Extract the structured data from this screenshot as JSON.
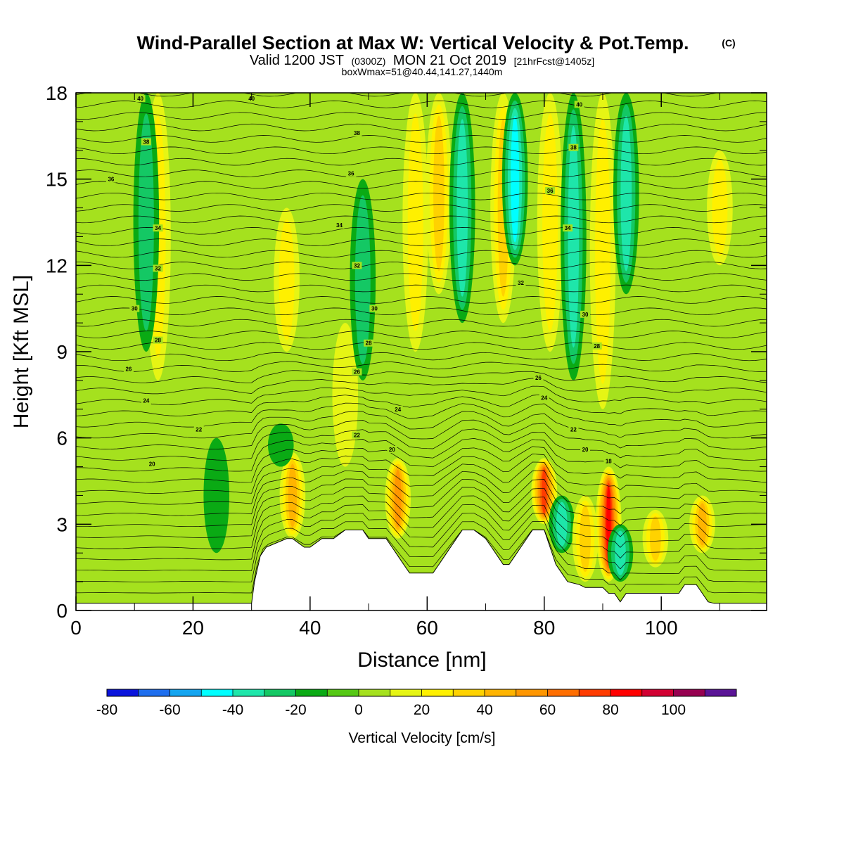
{
  "title": {
    "main": "Wind-Parallel Section at Max W: Vertical Velocity & Pot.Temp.",
    "main_mark": "(C)",
    "valid_prefix": "Valid 1200 JST",
    "valid_utc": "(0300Z)",
    "valid_date": "MON 21 Oct 2019",
    "forecast": "[21hrFcst@1405z]",
    "boxwmax": "boxWmax=51@40.44,141.27,1440m"
  },
  "colorbar": {
    "title": "Vertical Velocity [cm/s]",
    "levels": [
      -80,
      -70,
      -60,
      -50,
      -40,
      -30,
      -20,
      -10,
      0,
      10,
      20,
      30,
      40,
      50,
      60,
      70,
      80,
      90,
      100,
      110
    ],
    "labels": [
      "-80",
      "-60",
      "-40",
      "-20",
      "0",
      "20",
      "40",
      "60",
      "80",
      "100"
    ],
    "colors": [
      "#0a14dc",
      "#1e6eee",
      "#14a5f0",
      "#00ffff",
      "#1ee6aa",
      "#14c864",
      "#0aaa14",
      "#55c814",
      "#a5e11e",
      "#e6f514",
      "#fff000",
      "#ffd200",
      "#ffb400",
      "#ff9600",
      "#ff6e00",
      "#ff3c00",
      "#ff0000",
      "#d20032",
      "#960050",
      "#5a1496"
    ]
  },
  "chart_data": {
    "type": "heatmap",
    "title": "Wind-Parallel Section at Max W: Vertical Velocity & Pot.Temp.",
    "xlabel": "Distance [nm]",
    "ylabel": "Height [Kft MSL]",
    "xlim": [
      0,
      118
    ],
    "ylim": [
      0,
      18
    ],
    "x_ticks": [
      "0",
      "20",
      "40",
      "60",
      "80",
      "100"
    ],
    "y_ticks": [
      "0",
      "3",
      "6",
      "9",
      "12",
      "15",
      "18"
    ],
    "fill_variable": "Vertical Velocity [cm/s]",
    "contour_variable": "Potential temperature [C]",
    "terrain_profile": {
      "x": [
        0,
        30,
        30.5,
        31.5,
        32.5,
        36,
        37,
        39,
        40,
        42,
        43,
        44,
        46,
        48,
        49,
        50,
        51,
        53,
        54,
        55,
        56,
        57,
        58,
        59,
        60,
        61,
        62,
        63,
        64,
        65,
        66,
        67,
        68,
        70,
        71,
        72,
        73,
        74,
        75,
        76,
        77,
        78,
        80,
        81,
        82,
        83,
        84,
        86,
        87,
        88,
        90,
        91,
        92,
        93,
        94,
        95,
        96,
        97,
        98,
        99,
        100,
        101,
        102,
        103,
        104,
        105,
        106,
        107,
        108,
        109,
        118
      ],
      "y": [
        0.25,
        0.25,
        1.0,
        1.9,
        2.2,
        2.5,
        2.5,
        2.2,
        2.2,
        2.5,
        2.5,
        2.5,
        2.8,
        2.8,
        2.8,
        2.5,
        2.5,
        2.5,
        2.2,
        1.9,
        1.6,
        1.3,
        1.3,
        1.3,
        1.3,
        1.3,
        1.6,
        1.9,
        2.2,
        2.5,
        2.8,
        2.8,
        2.8,
        2.5,
        2.2,
        1.9,
        1.6,
        1.6,
        1.9,
        2.2,
        2.5,
        2.8,
        2.8,
        2.2,
        1.6,
        1.3,
        1.0,
        0.9,
        0.8,
        0.8,
        0.8,
        0.6,
        0.6,
        0.3,
        0.6,
        0.6,
        0.6,
        0.6,
        0.6,
        0.6,
        0.6,
        0.6,
        0.6,
        0.6,
        0.9,
        0.9,
        0.9,
        0.6,
        0.3,
        0.25,
        0.25
      ]
    },
    "anomalies": [
      {
        "x": 14,
        "z0": 8,
        "z1": 18,
        "w": 25
      },
      {
        "x": 12,
        "z0": 9,
        "z1": 18,
        "w": -20
      },
      {
        "x": 37,
        "z0": 2.5,
        "z1": 5.5,
        "w": 45
      },
      {
        "x": 36,
        "z0": 9,
        "z1": 14,
        "w": 25
      },
      {
        "x": 35,
        "z0": 5,
        "z1": 6.5,
        "w": -15
      },
      {
        "x": 46,
        "z0": 5,
        "z1": 10,
        "w": 15
      },
      {
        "x": 49,
        "z0": 8,
        "z1": 15,
        "w": -20
      },
      {
        "x": 55,
        "z0": 2.5,
        "z1": 5.3,
        "w": 55
      },
      {
        "x": 58,
        "z0": 9,
        "z1": 18,
        "w": 20
      },
      {
        "x": 62,
        "z0": 11,
        "z1": 18,
        "w": 30
      },
      {
        "x": 66,
        "z0": 10,
        "z1": 18,
        "w": -30
      },
      {
        "x": 73,
        "z0": 10,
        "z1": 18,
        "w": 30
      },
      {
        "x": 75,
        "z0": 12,
        "z1": 18,
        "w": -40
      },
      {
        "x": 80,
        "z0": 3,
        "z1": 5.3,
        "w": 70
      },
      {
        "x": 81,
        "z0": 9,
        "z1": 18,
        "w": 25
      },
      {
        "x": 83,
        "z0": 2,
        "z1": 4,
        "w": -30
      },
      {
        "x": 85,
        "z0": 8,
        "z1": 18,
        "w": -30
      },
      {
        "x": 87,
        "z0": 1,
        "z1": 4,
        "w": 35
      },
      {
        "x": 91,
        "z0": 1,
        "z1": 5,
        "w": 85
      },
      {
        "x": 90,
        "z0": 7,
        "z1": 18,
        "w": 25
      },
      {
        "x": 93,
        "z0": 1,
        "z1": 3,
        "w": -30
      },
      {
        "x": 94,
        "z0": 11,
        "z1": 18,
        "w": -35
      },
      {
        "x": 99,
        "z0": 1.5,
        "z1": 3.5,
        "w": 30
      },
      {
        "x": 107,
        "z0": 2,
        "z1": 4,
        "w": 45
      },
      {
        "x": 110,
        "z0": 12,
        "z1": 16,
        "w": 20
      },
      {
        "x": 24,
        "z0": 2,
        "z1": 6,
        "w": -10
      }
    ],
    "contour_labels": [
      {
        "x": 11,
        "z": 17.8,
        "text": "40"
      },
      {
        "x": 30,
        "z": 17.8,
        "text": "40"
      },
      {
        "x": 12,
        "z": 16.3,
        "text": "38"
      },
      {
        "x": 6,
        "z": 15.0,
        "text": "36"
      },
      {
        "x": 14,
        "z": 13.3,
        "text": "34"
      },
      {
        "x": 14,
        "z": 11.9,
        "text": "32"
      },
      {
        "x": 10,
        "z": 10.5,
        "text": "30"
      },
      {
        "x": 14,
        "z": 9.4,
        "text": "28"
      },
      {
        "x": 9,
        "z": 8.4,
        "text": "26"
      },
      {
        "x": 12,
        "z": 7.3,
        "text": "24"
      },
      {
        "x": 21,
        "z": 6.3,
        "text": "22"
      },
      {
        "x": 13,
        "z": 5.1,
        "text": "20"
      },
      {
        "x": 48,
        "z": 16.6,
        "text": "38"
      },
      {
        "x": 47,
        "z": 15.2,
        "text": "36"
      },
      {
        "x": 45,
        "z": 13.4,
        "text": "34"
      },
      {
        "x": 48,
        "z": 12.0,
        "text": "32"
      },
      {
        "x": 51,
        "z": 10.5,
        "text": "30"
      },
      {
        "x": 50,
        "z": 9.3,
        "text": "28"
      },
      {
        "x": 48,
        "z": 8.3,
        "text": "26"
      },
      {
        "x": 55,
        "z": 7.0,
        "text": "24"
      },
      {
        "x": 48,
        "z": 6.1,
        "text": "22"
      },
      {
        "x": 54,
        "z": 5.6,
        "text": "20"
      },
      {
        "x": 86,
        "z": 17.6,
        "text": "40"
      },
      {
        "x": 85,
        "z": 16.1,
        "text": "38"
      },
      {
        "x": 81,
        "z": 14.6,
        "text": "36"
      },
      {
        "x": 84,
        "z": 13.3,
        "text": "34"
      },
      {
        "x": 76,
        "z": 11.4,
        "text": "32"
      },
      {
        "x": 87,
        "z": 10.3,
        "text": "30"
      },
      {
        "x": 89,
        "z": 9.2,
        "text": "28"
      },
      {
        "x": 79,
        "z": 8.1,
        "text": "26"
      },
      {
        "x": 80,
        "z": 7.4,
        "text": "24"
      },
      {
        "x": 85,
        "z": 6.3,
        "text": "22"
      },
      {
        "x": 87,
        "z": 5.6,
        "text": "20"
      },
      {
        "x": 91,
        "z": 5.2,
        "text": "18"
      }
    ]
  }
}
